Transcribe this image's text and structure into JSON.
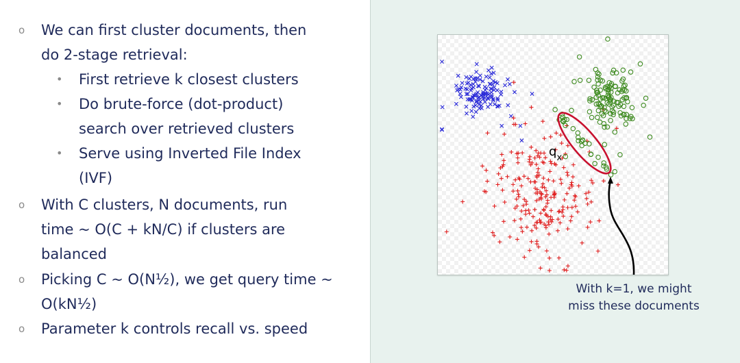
{
  "slide": {
    "bullets": [
      {
        "lines": [
          "We can first cluster documents, then",
          "do 2-stage retrieval:"
        ]
      },
      {
        "lines": [
          "First retrieve k closest clusters"
        ]
      },
      {
        "lines": [
          "Do brute-force (dot-product)",
          "search over retrieved clusters"
        ]
      },
      {
        "lines": [
          "Serve using Inverted File Index",
          "(IVF)"
        ]
      },
      {
        "lines": [
          "With C clusters, N documents, run",
          "time ~ O(C + kN/C) if clusters are",
          "balanced"
        ]
      },
      {
        "lines": [
          "Picking C ~ O(N½), we get query time ~",
          "O(kN½)"
        ]
      },
      {
        "lines": [
          "Parameter k controls recall vs. speed"
        ]
      }
    ],
    "markers": {
      "main": "o",
      "sub": "•"
    }
  },
  "figure": {
    "query_label": "q",
    "query_subscript": "x",
    "caption_lines": [
      "With k=1, we might",
      "miss these documents"
    ],
    "colors": {
      "blue_cluster": "#2a2ad8",
      "red_cluster": "#e01e1e",
      "green_cluster": "#3d8a1f",
      "ellipse": "#c8102e",
      "arrow": "#000000"
    }
  }
}
